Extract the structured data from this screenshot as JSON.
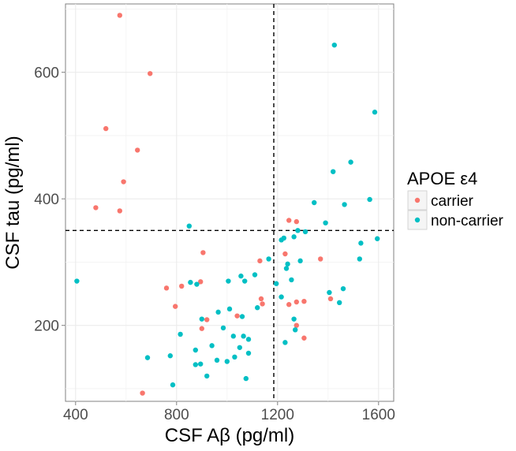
{
  "chart_data": {
    "type": "scatter",
    "xlabel": "CSF Aβ (pg/ml)",
    "ylabel": "CSF tau (pg/ml)",
    "xlim": [
      360,
      1660
    ],
    "ylim": [
      80,
      708
    ],
    "xticks": [
      400,
      800,
      1200,
      1600
    ],
    "yticks": [
      200,
      400,
      600
    ],
    "grid": true,
    "legend": {
      "title": "APOE ε4",
      "position": "right",
      "entries": [
        "carrier",
        "non-carrier"
      ]
    },
    "reference_lines": [
      {
        "orientation": "vertical",
        "value": 1185,
        "style": "dashed"
      },
      {
        "orientation": "horizontal",
        "value": 350,
        "style": "dashed"
      }
    ],
    "series": [
      {
        "name": "carrier",
        "color": "#F8766D",
        "points": [
          [
            575,
            690
          ],
          [
            695,
            598
          ],
          [
            520,
            511
          ],
          [
            645,
            477
          ],
          [
            590,
            427
          ],
          [
            480,
            386
          ],
          [
            575,
            381
          ],
          [
            905,
            315
          ],
          [
            760,
            259
          ],
          [
            820,
            262
          ],
          [
            895,
            269
          ],
          [
            795,
            230
          ],
          [
            920,
            209
          ],
          [
            900,
            195
          ],
          [
            1040,
            215
          ],
          [
            1130,
            302
          ],
          [
            1135,
            242
          ],
          [
            1140,
            234
          ],
          [
            1230,
            313
          ],
          [
            1245,
            366
          ],
          [
            1275,
            364
          ],
          [
            1370,
            305
          ],
          [
            1245,
            233
          ],
          [
            1275,
            237
          ],
          [
            1305,
            238
          ],
          [
            1275,
            200
          ],
          [
            1305,
            180
          ],
          [
            1410,
            242
          ],
          [
            665,
            93
          ]
        ]
      },
      {
        "name": "non-carrier",
        "color": "#00BFC4",
        "points": [
          [
            1425,
            643
          ],
          [
            1585,
            537
          ],
          [
            1490,
            458
          ],
          [
            1420,
            443
          ],
          [
            1565,
            399
          ],
          [
            1465,
            391
          ],
          [
            1345,
            394
          ],
          [
            1390,
            362
          ],
          [
            1280,
            350
          ],
          [
            1310,
            348
          ],
          [
            1265,
            340
          ],
          [
            1225,
            338
          ],
          [
            1215,
            335
          ],
          [
            1530,
            330
          ],
          [
            1595,
            337
          ],
          [
            1290,
            302
          ],
          [
            1240,
            297
          ],
          [
            1165,
            305
          ],
          [
            1525,
            305
          ],
          [
            1235,
            290
          ],
          [
            1255,
            272
          ],
          [
            850,
            357
          ],
          [
            405,
            270
          ],
          [
            855,
            268
          ],
          [
            880,
            265
          ],
          [
            1005,
            270
          ],
          [
            1055,
            278
          ],
          [
            1070,
            270
          ],
          [
            1110,
            280
          ],
          [
            1195,
            266
          ],
          [
            1405,
            252
          ],
          [
            1445,
            236
          ],
          [
            1460,
            258
          ],
          [
            1215,
            245
          ],
          [
            1120,
            228
          ],
          [
            965,
            221
          ],
          [
            1010,
            226
          ],
          [
            1060,
            214
          ],
          [
            1265,
            210
          ],
          [
            1270,
            193
          ],
          [
            900,
            210
          ],
          [
            815,
            186
          ],
          [
            875,
            161
          ],
          [
            940,
            168
          ],
          [
            1025,
            183
          ],
          [
            1050,
            165
          ],
          [
            1085,
            178
          ],
          [
            985,
            196
          ],
          [
            1065,
            183
          ],
          [
            960,
            145
          ],
          [
            1000,
            143
          ],
          [
            1030,
            150
          ],
          [
            1085,
            156
          ],
          [
            1230,
            173
          ],
          [
            775,
            152
          ],
          [
            685,
            149
          ],
          [
            875,
            138
          ],
          [
            895,
            139
          ],
          [
            920,
            120
          ],
          [
            1075,
            116
          ],
          [
            785,
            106
          ]
        ]
      }
    ]
  }
}
